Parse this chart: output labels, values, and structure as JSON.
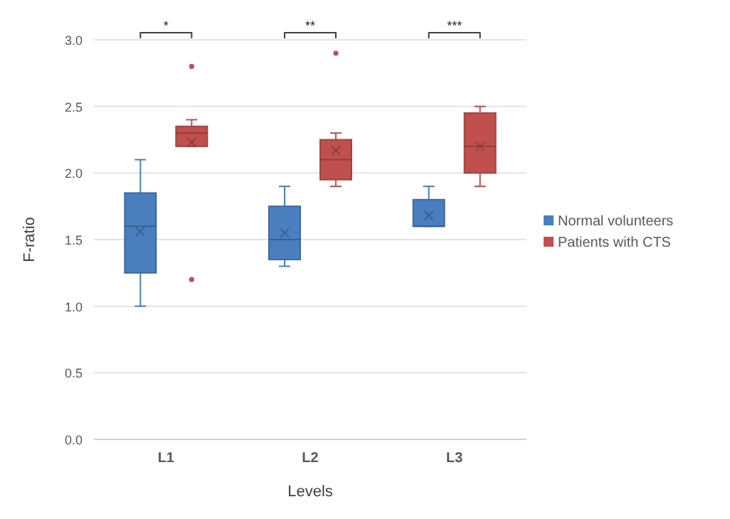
{
  "chart_data": {
    "type": "box",
    "xlabel": "Levels",
    "ylabel": "F-ratio",
    "categories": [
      "L1",
      "L2",
      "L3"
    ],
    "ylim": [
      0,
      3
    ],
    "yticks": [
      {
        "value": 0,
        "label": "0.0"
      },
      {
        "value": 0.5,
        "label": "0.5"
      },
      {
        "value": 1,
        "label": "1.0"
      },
      {
        "value": 1.5,
        "label": "1.5"
      },
      {
        "value": 2,
        "label": "2.0"
      },
      {
        "value": 2.5,
        "label": "2.5"
      },
      {
        "value": 3,
        "label": "3.0"
      }
    ],
    "grid": "y",
    "legend": "right",
    "series": [
      {
        "name": "Normal volunteers",
        "color": "#4a7ebf",
        "boxes": [
          {
            "low": 1.0,
            "q1": 1.25,
            "median": 1.6,
            "q3": 1.85,
            "high": 2.1,
            "mean": 1.56
          },
          {
            "low": 1.3,
            "q1": 1.35,
            "median": 1.5,
            "q3": 1.75,
            "high": 1.9,
            "mean": 1.55
          },
          {
            "low": 1.6,
            "q1": 1.6,
            "median": 1.6,
            "q3": 1.8,
            "high": 1.9,
            "mean": 1.68
          }
        ]
      },
      {
        "name": "Patients with CTS",
        "color": "#c0504d",
        "boxes": [
          {
            "low": 2.2,
            "q1": 2.2,
            "median": 2.3,
            "q3": 2.35,
            "high": 2.4,
            "mean": 2.23,
            "outliers": [
              2.8,
              1.2
            ]
          },
          {
            "low": 1.9,
            "q1": 1.95,
            "median": 2.1,
            "q3": 2.25,
            "high": 2.3,
            "mean": 2.17,
            "outliers": [
              2.9
            ]
          },
          {
            "low": 1.9,
            "q1": 2.0,
            "median": 2.2,
            "q3": 2.45,
            "high": 2.5,
            "mean": 2.2
          }
        ]
      }
    ],
    "annotations": [
      "*",
      "**",
      "***"
    ]
  }
}
